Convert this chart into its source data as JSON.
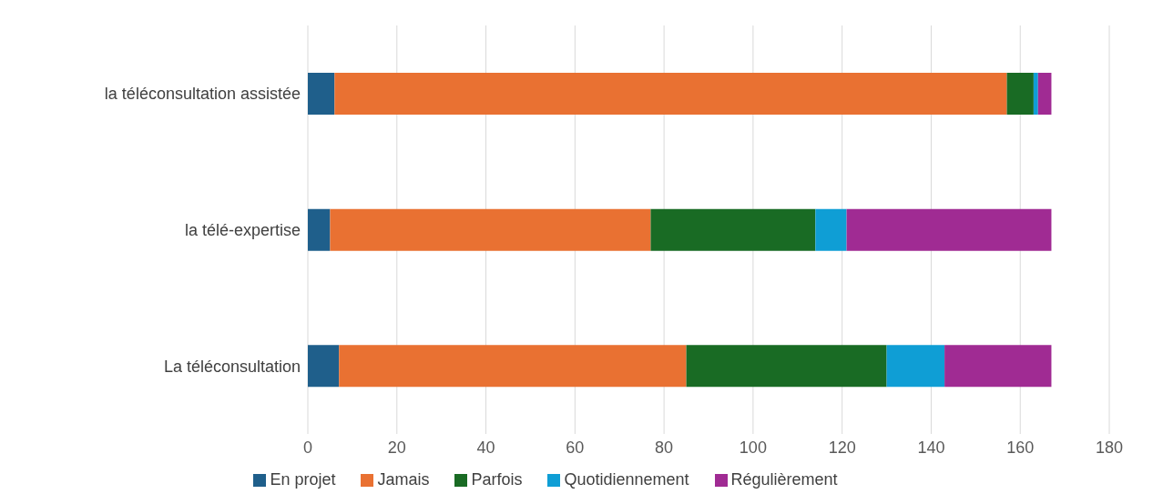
{
  "chart_data": {
    "type": "bar",
    "orientation": "horizontal",
    "stacked": true,
    "categories": [
      "la téléconsultation assistée",
      "la télé-expertise",
      "La téléconsultation"
    ],
    "series": [
      {
        "name": "En projet",
        "color": "#1f5f8b",
        "values": [
          6,
          5,
          7
        ]
      },
      {
        "name": "Jamais",
        "color": "#e97132",
        "values": [
          151,
          72,
          78
        ]
      },
      {
        "name": "Parfois",
        "color": "#196b24",
        "values": [
          6,
          37,
          45
        ]
      },
      {
        "name": "Quotidiennement",
        "color": "#0f9ed5",
        "values": [
          1,
          7,
          13
        ]
      },
      {
        "name": "Régulièrement",
        "color": "#a02b93",
        "values": [
          3,
          46,
          24
        ]
      }
    ],
    "xlim": [
      0,
      180
    ],
    "xticks": [
      0,
      20,
      40,
      60,
      80,
      100,
      120,
      140,
      160,
      180
    ],
    "grid": "x",
    "legend": "bottom"
  }
}
